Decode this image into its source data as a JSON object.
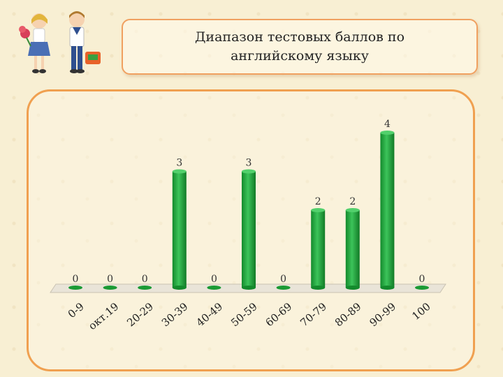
{
  "title": "Диапазон тестовых баллов по английскому языку",
  "chart_data": {
    "type": "bar",
    "title": "Диапазон тестовых баллов по английскому языку",
    "categories": [
      "0-9",
      "окт.19",
      "20-29",
      "30-39",
      "40-49",
      "50-59",
      "60-69",
      "70-79",
      "80-89",
      "90-99",
      "100"
    ],
    "values": [
      0,
      0,
      0,
      3,
      0,
      3,
      0,
      2,
      2,
      4,
      0
    ],
    "ylim": [
      0,
      4
    ],
    "grid": false,
    "legend": "none",
    "bar_color": "#1faa3c"
  }
}
